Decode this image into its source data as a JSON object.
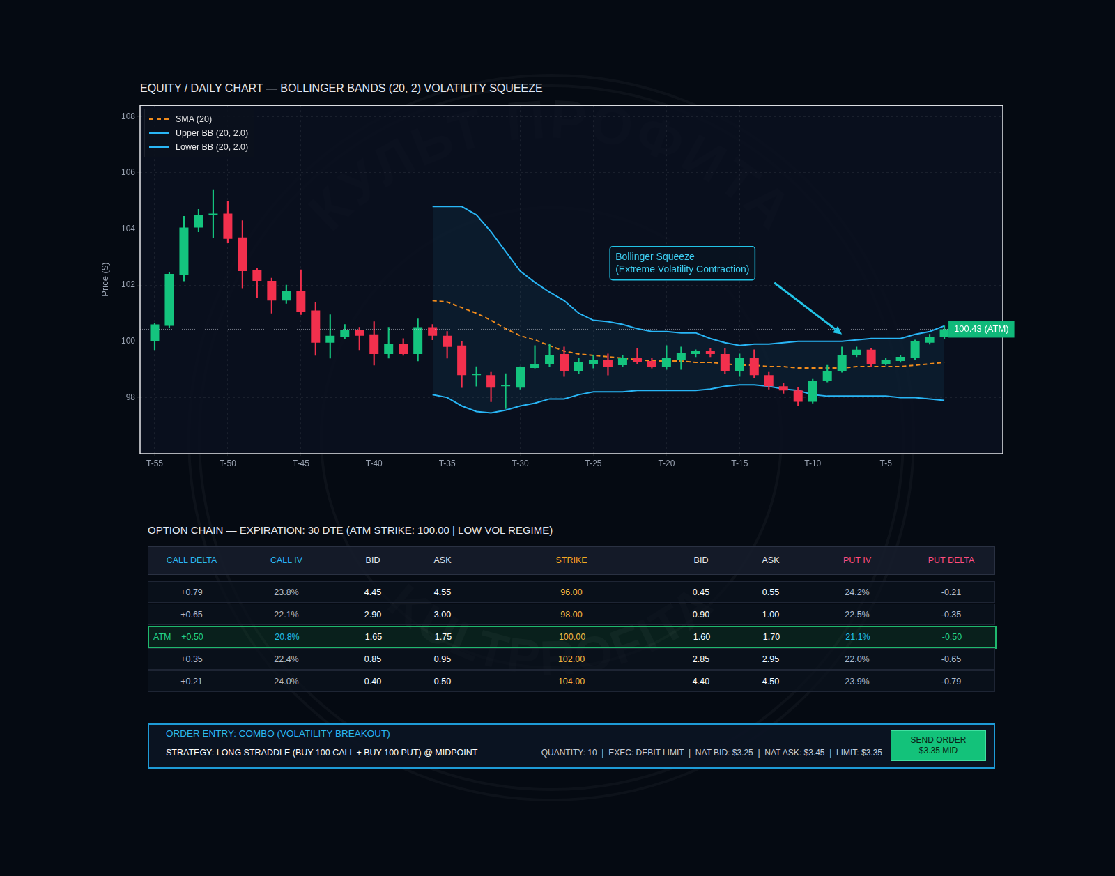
{
  "chart_data": {
    "type": "candlestick",
    "title": "EQUITY / DAILY CHART — BOLLINGER BANDS (20, 2) VOLATILITY SQUEEZE",
    "y_label": "Price ($)",
    "x": [
      -55,
      -54,
      -53,
      -52,
      -51,
      -50,
      -49,
      -48,
      -47,
      -46,
      -45,
      -44,
      -43,
      -42,
      -41,
      -40,
      -39,
      -38,
      -37,
      -36,
      -35,
      -34,
      -33,
      -32,
      -31,
      -30,
      -29,
      -28,
      -27,
      -26,
      -25,
      -24,
      -23,
      -22,
      -21,
      -20,
      -19,
      -18,
      -17,
      -16,
      -15,
      -14,
      -13,
      -12,
      -11,
      -10,
      -9,
      -8,
      -7,
      -6,
      -5,
      -4,
      -3,
      -2,
      -1
    ],
    "open": [
      100.0,
      100.55,
      102.35,
      104.05,
      104.5,
      104.55,
      103.7,
      102.55,
      102.15,
      101.45,
      101.8,
      101.1,
      99.95,
      100.15,
      100.4,
      100.25,
      99.55,
      99.9,
      99.55,
      100.5,
      100.2,
      99.85,
      98.8,
      98.8,
      98.4,
      98.35,
      99.05,
      99.2,
      99.55,
      98.95,
      99.2,
      99.35,
      99.15,
      99.4,
      99.3,
      99.1,
      99.35,
      99.55,
      99.65,
      99.55,
      98.95,
      99.4,
      98.8,
      98.4,
      98.25,
      97.85,
      98.6,
      98.95,
      99.5,
      99.7,
      99.2,
      99.3,
      99.4,
      99.95,
      100.15
    ],
    "high": [
      100.65,
      102.45,
      104.45,
      104.7,
      105.4,
      105.0,
      104.3,
      102.6,
      102.25,
      102.0,
      102.55,
      101.4,
      100.95,
      100.6,
      100.5,
      100.7,
      100.5,
      100.1,
      100.8,
      100.6,
      100.35,
      100.0,
      99.1,
      98.9,
      98.85,
      99.1,
      99.85,
      99.9,
      99.8,
      99.4,
      99.5,
      99.55,
      99.5,
      99.75,
      99.4,
      99.85,
      99.8,
      99.7,
      99.75,
      99.75,
      99.55,
      99.7,
      98.9,
      98.5,
      98.35,
      98.65,
      99.15,
      99.8,
      99.8,
      99.75,
      99.4,
      99.5,
      100.05,
      100.25,
      100.55
    ],
    "low": [
      99.7,
      100.5,
      102.15,
      103.9,
      103.7,
      103.5,
      101.9,
      101.55,
      101.0,
      101.35,
      100.95,
      99.5,
      99.4,
      100.1,
      99.7,
      99.15,
      99.4,
      99.5,
      99.3,
      100.05,
      99.4,
      98.35,
      98.4,
      97.85,
      97.6,
      98.3,
      99.05,
      99.1,
      98.75,
      98.85,
      99.05,
      98.8,
      99.1,
      99.2,
      99.05,
      99.0,
      99.0,
      99.45,
      99.45,
      98.85,
      98.75,
      98.7,
      98.3,
      98.15,
      97.7,
      97.8,
      98.55,
      98.9,
      99.45,
      99.1,
      99.15,
      99.25,
      99.35,
      99.9,
      100.1
    ],
    "close": [
      100.6,
      102.4,
      104.05,
      104.5,
      104.55,
      103.65,
      102.5,
      102.15,
      101.45,
      101.8,
      101.05,
      99.95,
      100.2,
      100.4,
      100.2,
      99.55,
      99.9,
      99.55,
      100.5,
      100.2,
      99.8,
      98.8,
      98.85,
      98.35,
      98.45,
      99.1,
      99.2,
      99.5,
      98.95,
      99.25,
      99.35,
      99.1,
      99.4,
      99.25,
      99.1,
      99.4,
      99.6,
      99.65,
      99.55,
      98.95,
      99.4,
      98.8,
      98.4,
      98.25,
      97.85,
      98.6,
      98.95,
      99.5,
      99.7,
      99.2,
      99.35,
      99.45,
      100.0,
      100.15,
      100.43
    ],
    "series": [
      {
        "name": "SMA (20)",
        "color": "#f28c1c",
        "line_style": "dashed",
        "values": [
          null,
          null,
          null,
          null,
          null,
          null,
          null,
          null,
          null,
          null,
          null,
          null,
          null,
          null,
          null,
          null,
          null,
          null,
          null,
          101.45,
          101.4,
          101.2,
          101.0,
          100.75,
          100.45,
          100.2,
          100.05,
          99.85,
          99.65,
          99.55,
          99.5,
          99.45,
          99.4,
          99.35,
          99.3,
          99.3,
          99.3,
          99.25,
          99.25,
          99.2,
          99.15,
          99.15,
          99.1,
          99.1,
          99.05,
          99.05,
          99.05,
          99.05,
          99.1,
          99.1,
          99.1,
          99.1,
          99.15,
          99.2,
          99.25
        ]
      },
      {
        "name": "Upper BB (20, 2.0)",
        "color": "#29b6f6",
        "line_style": "solid",
        "values": [
          null,
          null,
          null,
          null,
          null,
          null,
          null,
          null,
          null,
          null,
          null,
          null,
          null,
          null,
          null,
          null,
          null,
          null,
          null,
          104.8,
          104.8,
          104.8,
          104.5,
          103.9,
          103.2,
          102.5,
          102.1,
          101.75,
          101.45,
          101.0,
          100.75,
          100.7,
          100.6,
          100.45,
          100.35,
          100.35,
          100.3,
          100.3,
          100.1,
          99.95,
          99.85,
          99.9,
          99.9,
          99.95,
          100.0,
          100.0,
          100.0,
          100.0,
          100.05,
          100.1,
          100.1,
          100.1,
          100.25,
          100.35,
          100.55
        ]
      },
      {
        "name": "Lower BB (20, 2.0)",
        "color": "#29b6f6",
        "line_style": "solid",
        "values": [
          null,
          null,
          null,
          null,
          null,
          null,
          null,
          null,
          null,
          null,
          null,
          null,
          null,
          null,
          null,
          null,
          null,
          null,
          null,
          98.1,
          98.0,
          97.7,
          97.5,
          97.45,
          97.55,
          97.7,
          97.8,
          97.95,
          97.95,
          98.1,
          98.2,
          98.2,
          98.2,
          98.25,
          98.25,
          98.25,
          98.25,
          98.25,
          98.3,
          98.4,
          98.45,
          98.45,
          98.4,
          98.3,
          98.25,
          98.1,
          98.05,
          98.05,
          98.05,
          98.05,
          98.05,
          98.0,
          98.0,
          97.95,
          97.9
        ]
      }
    ],
    "xlim": [
      -56,
      3
    ],
    "ylim": [
      96,
      108.4
    ],
    "xticks": [
      {
        "value": -55,
        "label": "T-55"
      },
      {
        "value": -50,
        "label": "T-50"
      },
      {
        "value": -45,
        "label": "T-45"
      },
      {
        "value": -40,
        "label": "T-40"
      },
      {
        "value": -35,
        "label": "T-35"
      },
      {
        "value": -30,
        "label": "T-30"
      },
      {
        "value": -25,
        "label": "T-25"
      },
      {
        "value": -20,
        "label": "T-20"
      },
      {
        "value": -15,
        "label": "T-15"
      },
      {
        "value": -10,
        "label": "T-10"
      },
      {
        "value": -5,
        "label": "T-5"
      }
    ],
    "yticks": [
      98,
      100,
      102,
      104,
      106,
      108
    ],
    "grid": true,
    "legend": "upper left",
    "price_line": {
      "y": 100.43,
      "label": "100.43 (ATM)"
    },
    "annotations": [
      {
        "text": [
          "Bollinger Squeeze",
          "(Extreme Volatility Contraction)"
        ],
        "x": -8,
        "y": 100.25
      }
    ]
  },
  "option_chain": {
    "title": "OPTION CHAIN — EXPIRATION: 30 DTE (ATM STRIKE: 100.00 | LOW VOL REGIME)",
    "columns": [
      "CALL DELTA",
      "CALL IV",
      "BID",
      "ASK",
      "STRIKE",
      "BID",
      "ASK",
      "PUT IV",
      "PUT DELTA"
    ],
    "rows": [
      {
        "cells": [
          "+0.79",
          "23.8%",
          "4.45",
          "4.55",
          "96.00",
          "0.45",
          "0.55",
          "24.2%",
          "-0.21"
        ]
      },
      {
        "cells": [
          "+0.65",
          "22.1%",
          "2.90",
          "3.00",
          "98.00",
          "0.90",
          "1.00",
          "22.5%",
          "-0.35"
        ]
      },
      {
        "tag": "ATM",
        "cells": [
          "+0.50",
          "20.8%",
          "1.65",
          "1.75",
          "100.00",
          "1.60",
          "1.70",
          "21.1%",
          "-0.50"
        ]
      },
      {
        "cells": [
          "+0.35",
          "22.4%",
          "0.85",
          "0.95",
          "102.00",
          "2.85",
          "2.95",
          "22.0%",
          "-0.65"
        ]
      },
      {
        "cells": [
          "+0.21",
          "24.0%",
          "0.40",
          "0.50",
          "104.00",
          "4.40",
          "4.50",
          "23.9%",
          "-0.79"
        ]
      }
    ]
  },
  "order_entry": {
    "title": "ORDER ENTRY: COMBO (VOLATILITY BREAKOUT)",
    "strategy": "STRATEGY: LONG STRADDLE (BUY 100 CALL + BUY 100 PUT) @ MIDPOINT",
    "details": "QUANTITY: 10  |  EXEC: DEBIT LIMIT  |  NAT BID: $3.25  |  NAT ASK: $3.45  |  LIMIT: $3.35",
    "button": [
      "SEND ORDER",
      "$3.35 MID"
    ]
  },
  "watermark": [
    "КУЛЬТ ПРОФИТА",
    "KULTPROFITA"
  ]
}
